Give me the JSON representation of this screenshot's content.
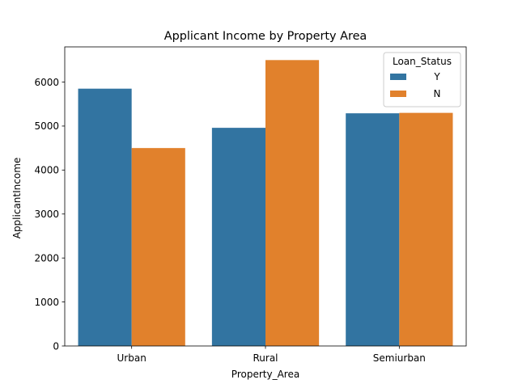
{
  "chart_data": {
    "type": "bar",
    "title": "Applicant Income by Property Area",
    "xlabel": "Property_Area",
    "ylabel": "ApplicantIncome",
    "categories": [
      "Urban",
      "Rural",
      "Semiurban"
    ],
    "series": [
      {
        "name": "Y",
        "color": "#3274a1",
        "values": [
          5850,
          4960,
          5290
        ]
      },
      {
        "name": "N",
        "color": "#e1812c",
        "values": [
          4500,
          6500,
          5300
        ]
      }
    ],
    "ylim": [
      0,
      6800
    ],
    "yticks": [
      0,
      1000,
      2000,
      3000,
      4000,
      5000,
      6000
    ],
    "legend": {
      "title": "Loan_Status",
      "placement": "top-right"
    },
    "grid": false
  }
}
